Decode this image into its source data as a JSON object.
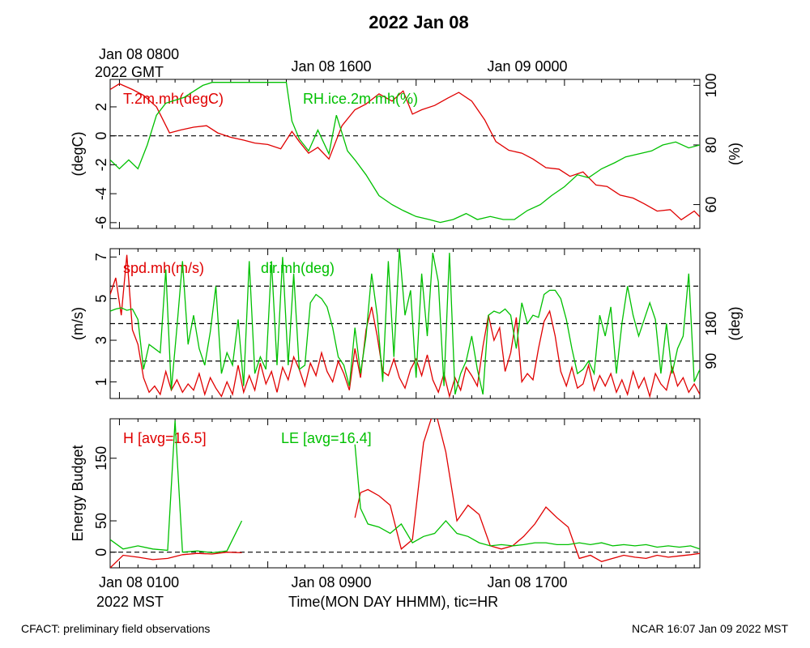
{
  "page": {
    "title": "2022 Jan 08",
    "top_axis_origin_line1": "Jan 08 0800",
    "top_axis_origin_line2": "2022 GMT",
    "top_axis_labels": [
      "Jan 08 1600",
      "Jan 09 0000"
    ],
    "bottom_axis_origin_line1": "Jan 08 0100",
    "bottom_axis_origin_line2": "2022 MST",
    "bottom_axis_labels": [
      "Jan 08 0900",
      "Jan 08 1700"
    ],
    "xlabel": "Time(MON DAY HHMM), tic=HR",
    "footer_left": "CFACT: preliminary field observations",
    "footer_right": "NCAR 16:07 Jan 09 2022 MST"
  },
  "colors": {
    "red": "#e00000",
    "green": "#00c000"
  },
  "chart_data": [
    {
      "type": "line",
      "panel": "temperature-humidity",
      "x_unit": "hours after Jan 08 0100 MST",
      "xlim": [
        -0.5,
        31.3
      ],
      "ylabel_left": "(degC)",
      "ylabel_right": "(%)",
      "ylim_left": [
        -6.4,
        3.9
      ],
      "yticks_left": [
        2,
        0,
        -2,
        -4,
        -6
      ],
      "ylim_right": [
        52,
        102
      ],
      "yticks_right": [
        100,
        80,
        60
      ],
      "reference_line_left": 0,
      "series": [
        {
          "name": "T.2m.mh(degC)",
          "color": "red",
          "axis": "left",
          "x": [
            -0.5,
            0,
            0.7,
            1.3,
            2,
            2.7,
            3.3,
            4,
            4.7,
            5.3,
            6,
            6.7,
            7.3,
            8,
            8.7,
            9.3,
            9.7,
            10.2,
            10.7,
            11.3,
            12,
            12.7,
            13.3,
            14,
            14.7,
            15.3,
            15.8,
            16.3,
            17,
            17.7,
            18.3,
            19,
            19.7,
            20.3,
            21,
            21.7,
            22.3,
            23,
            23.7,
            24.3,
            25,
            25.7,
            26.3,
            27,
            27.7,
            28.3,
            29,
            29.7,
            30.3,
            31,
            31.3
          ],
          "y": [
            3.2,
            3.6,
            3.2,
            2.8,
            2,
            0.2,
            0.4,
            0.6,
            0.7,
            0.2,
            -0.1,
            -0.3,
            -0.5,
            -0.6,
            -0.9,
            0.3,
            -0.4,
            -1.2,
            -0.8,
            -1.6,
            0.7,
            1.8,
            2.2,
            2.9,
            2.4,
            3.1,
            1.5,
            1.8,
            2.1,
            2.6,
            3,
            2.4,
            1.1,
            -0.4,
            -1,
            -1.2,
            -1.6,
            -2.2,
            -2.3,
            -2.8,
            -2.5,
            -3.4,
            -3.5,
            -4.1,
            -4.3,
            -4.7,
            -5.2,
            -5.1,
            -5.8,
            -5.2,
            -5.6
          ]
        },
        {
          "name": "RH.ice.2m.mh(%)",
          "color": "green",
          "axis": "right",
          "x": [
            -0.5,
            0,
            0.5,
            1,
            1.5,
            2,
            2.5,
            3,
            3.5,
            4,
            4.5,
            5,
            5.5,
            6,
            6.5,
            7,
            7.5,
            8,
            8.5,
            9,
            9.3,
            9.7,
            10.2,
            10.7,
            11.3,
            11.7,
            12,
            12.3,
            12.7,
            13.3,
            14,
            14.7,
            15.3,
            16,
            16.7,
            17.3,
            18,
            18.7,
            19.3,
            20,
            20.7,
            21.3,
            22,
            22.7,
            23.3,
            24,
            24.7,
            25.3,
            26,
            26.7,
            27.3,
            28,
            28.7,
            29.3,
            30,
            30.7,
            31.3
          ],
          "y": [
            75,
            72,
            75,
            72,
            80,
            90,
            94,
            95,
            96,
            98,
            100,
            101,
            101,
            101,
            101,
            101,
            101,
            101,
            101,
            101,
            88,
            82,
            78,
            85,
            77,
            90,
            84,
            78,
            75,
            70,
            63,
            60,
            58,
            56,
            55,
            54,
            55,
            57,
            55,
            56,
            55,
            55,
            58,
            60,
            63,
            66,
            70,
            69,
            72,
            74,
            76,
            77,
            78,
            80,
            81,
            79,
            80
          ]
        }
      ]
    },
    {
      "type": "line",
      "panel": "wind",
      "x_unit": "hours after Jan 08 0100 MST",
      "xlim": [
        -0.5,
        31.3
      ],
      "ylabel_left": "(m/s)",
      "ylabel_right": "(deg)",
      "ylim_left": [
        0.2,
        7.4
      ],
      "yticks_left": [
        7,
        5,
        3,
        1
      ],
      "ylim_right": [
        0,
        360
      ],
      "yticks_right": [
        180,
        90
      ],
      "reference_lines_right": [
        90,
        180,
        270
      ],
      "series": [
        {
          "name": "spd.mh(m/s)",
          "color": "red",
          "axis": "left",
          "x": [
            -0.5,
            -0.2,
            0.1,
            0.4,
            0.7,
            1,
            1.3,
            1.6,
            1.9,
            2.2,
            2.5,
            2.8,
            3.1,
            3.4,
            3.7,
            4,
            4.3,
            4.6,
            4.9,
            5.2,
            5.5,
            5.8,
            6.1,
            6.4,
            6.7,
            7,
            7.3,
            7.6,
            7.9,
            8.2,
            8.5,
            8.8,
            9.1,
            9.4,
            9.7,
            10,
            10.3,
            10.6,
            10.9,
            11.2,
            11.5,
            11.8,
            12.1,
            12.4,
            12.7,
            13,
            13.3,
            13.6,
            13.9,
            14.2,
            14.5,
            14.8,
            15.1,
            15.4,
            15.7,
            16,
            16.3,
            16.6,
            16.9,
            17.2,
            17.5,
            17.8,
            18.1,
            18.4,
            18.7,
            19,
            19.3,
            19.6,
            19.9,
            20.2,
            20.5,
            20.8,
            21.1,
            21.4,
            21.7,
            22,
            22.3,
            22.6,
            22.9,
            23.2,
            23.5,
            23.8,
            24.1,
            24.4,
            24.7,
            25,
            25.3,
            25.6,
            25.9,
            26.2,
            26.5,
            26.8,
            27.1,
            27.4,
            27.7,
            28,
            28.3,
            28.6,
            28.9,
            29.2,
            29.5,
            29.8,
            30.1,
            30.4,
            30.7,
            31,
            31.3
          ],
          "y": [
            5.2,
            6,
            4.2,
            7.1,
            3.5,
            2.8,
            1.2,
            0.5,
            0.8,
            0.4,
            1.5,
            0.6,
            1.1,
            0.5,
            0.9,
            0.6,
            1.4,
            0.4,
            1.2,
            0.7,
            0.3,
            1,
            0.4,
            1.8,
            0.5,
            1.3,
            0.6,
            1.9,
            0.9,
            1.5,
            0.5,
            1.7,
            1.1,
            2.2,
            1.6,
            0.8,
            1.9,
            1.3,
            2.4,
            1.5,
            1,
            2,
            1.4,
            0.6,
            2.6,
            1.2,
            3.5,
            4.6,
            3.2,
            1.5,
            1.3,
            2.1,
            1.2,
            0.7,
            1.6,
            2.1,
            1.3,
            2.3,
            1.1,
            0.5,
            1.4,
            0.3,
            1.2,
            0.6,
            1.7,
            1.3,
            0.8,
            2.7,
            4.2,
            3,
            3.6,
            1.5,
            2.4,
            4.1,
            1,
            1.4,
            1.1,
            2.6,
            3.9,
            4.4,
            3.2,
            1.5,
            0.8,
            1.7,
            0.7,
            0.9,
            1.8,
            0.6,
            1.3,
            0.8,
            1.4,
            0.5,
            1.1,
            0.4,
            1.5,
            0.7,
            1.2,
            0.3,
            1.4,
            0.9,
            0.6,
            1.7,
            0.8,
            1.2,
            0.5,
            0.9,
            0.4
          ]
        },
        {
          "name": "dir.mh(deg)",
          "color": "green",
          "axis": "right",
          "x": [
            -0.5,
            -0.2,
            0.1,
            0.4,
            0.7,
            1,
            1.3,
            1.6,
            1.9,
            2.2,
            2.5,
            2.8,
            3.1,
            3.4,
            3.7,
            4,
            4.3,
            4.6,
            4.9,
            5.2,
            5.5,
            5.8,
            6.1,
            6.4,
            6.7,
            7,
            7.3,
            7.6,
            7.9,
            8.2,
            8.5,
            8.8,
            9.1,
            9.4,
            9.7,
            10,
            10.3,
            10.6,
            10.9,
            11.2,
            11.5,
            11.8,
            12.1,
            12.4,
            12.7,
            13,
            13.3,
            13.6,
            13.9,
            14.2,
            14.5,
            14.8,
            15.1,
            15.4,
            15.7,
            16,
            16.3,
            16.6,
            16.9,
            17.2,
            17.5,
            17.8,
            18.1,
            18.4,
            18.7,
            19,
            19.3,
            19.6,
            19.9,
            20.2,
            20.5,
            20.8,
            21.1,
            21.4,
            21.7,
            22,
            22.3,
            22.6,
            22.9,
            23.2,
            23.5,
            23.8,
            24.1,
            24.4,
            24.7,
            25,
            25.3,
            25.6,
            25.9,
            26.2,
            26.5,
            26.8,
            27.1,
            27.4,
            27.7,
            28,
            28.3,
            28.6,
            28.9,
            29.2,
            29.5,
            29.8,
            30.1,
            30.4,
            30.7,
            31,
            31.3
          ],
          "y": [
            210,
            215,
            218,
            212,
            215,
            190,
            70,
            130,
            120,
            110,
            310,
            20,
            170,
            330,
            130,
            200,
            120,
            80,
            160,
            270,
            60,
            110,
            80,
            190,
            30,
            330,
            60,
            100,
            70,
            330,
            80,
            340,
            80,
            300,
            70,
            80,
            230,
            250,
            240,
            220,
            170,
            100,
            80,
            30,
            170,
            60,
            150,
            300,
            200,
            40,
            330,
            100,
            360,
            200,
            260,
            50,
            300,
            150,
            350,
            280,
            30,
            350,
            10,
            60,
            90,
            150,
            70,
            10,
            200,
            210,
            205,
            215,
            200,
            120,
            230,
            180,
            200,
            195,
            250,
            260,
            260,
            240,
            190,
            120,
            60,
            70,
            90,
            60,
            200,
            150,
            220,
            60,
            180,
            270,
            200,
            150,
            190,
            230,
            190,
            60,
            180,
            60,
            120,
            150,
            300,
            40,
            70
          ]
        }
      ]
    },
    {
      "type": "line",
      "panel": "energy-budget",
      "x_unit": "hours after Jan 08 0100 MST",
      "xlim": [
        -0.5,
        31.3
      ],
      "ylabel_left": "Energy Budget",
      "ylim": [
        -25,
        213
      ],
      "yticks": [
        150,
        50,
        0
      ],
      "reference_line": 0,
      "series": [
        {
          "name": "H [avg=16.5]",
          "color": "red",
          "segments": [
            {
              "x": [
                -0.5,
                0.2,
                1,
                1.8,
                2.6,
                3.4,
                4.2,
                5,
                5.8,
                6.6
              ],
              "y": [
                -25,
                -5,
                -8,
                -12,
                -10,
                -4,
                -2,
                -3,
                0,
                -1
              ]
            },
            {
              "x": [
                12.7,
                13,
                13.4,
                14,
                14.6,
                15.2,
                15.8,
                16.4,
                17,
                17.6,
                18.2,
                18.8,
                19.4,
                20,
                20.6,
                21.2,
                21.8,
                22.4,
                23,
                23.6,
                24.2,
                24.8,
                25.4,
                26,
                26.6,
                27.2,
                27.8,
                28.4,
                29,
                29.6,
                30.2,
                30.8,
                31.3
              ],
              "y": [
                55,
                95,
                100,
                90,
                75,
                5,
                20,
                175,
                230,
                160,
                50,
                75,
                60,
                10,
                5,
                10,
                25,
                45,
                72,
                55,
                40,
                -10,
                -5,
                -15,
                -10,
                -5,
                -8,
                -10,
                -5,
                -8,
                -6,
                -4,
                -2
              ]
            }
          ]
        },
        {
          "name": "LE [avg=16.4]",
          "color": "green",
          "segments": [
            {
              "x": [
                -0.5,
                0.2,
                1,
                1.8,
                2.6,
                3,
                3.4,
                4.2,
                5,
                5.8,
                6.6
              ],
              "y": [
                20,
                5,
                10,
                5,
                3,
                210,
                0,
                2,
                -1,
                2,
                50
              ]
            },
            {
              "x": [
                12.7,
                13,
                13.4,
                14,
                14.6,
                15.2,
                15.8,
                16.4,
                17,
                17.6,
                18.2,
                18.8,
                19.4,
                20,
                20.6,
                21.2,
                21.8,
                22.4,
                23,
                23.6,
                24.2,
                24.8,
                25.4,
                26,
                26.6,
                27.2,
                27.8,
                28.4,
                29,
                29.6,
                30.2,
                30.8,
                31.3
              ],
              "y": [
                172,
                70,
                45,
                40,
                30,
                45,
                15,
                25,
                30,
                50,
                30,
                25,
                15,
                10,
                12,
                10,
                12,
                15,
                15,
                12,
                12,
                15,
                12,
                15,
                10,
                12,
                10,
                12,
                8,
                10,
                8,
                10,
                5
              ]
            }
          ]
        }
      ]
    }
  ]
}
